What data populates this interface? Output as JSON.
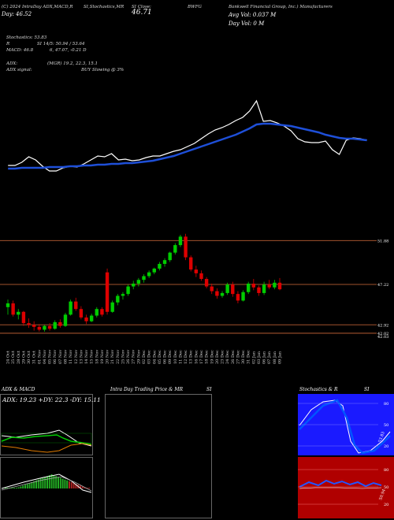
{
  "header": {
    "left": "(C) 2024 IntraDay ADX,MACD,R",
    "si_stoch": "SI,Stochastics,MR",
    "si_closeprefix": "SI Close:",
    "close_value": "46.71",
    "ticker": "BWFG",
    "company": "Bankwell Financial Group, Inc.) Manufacturers",
    "day_label": "Day:",
    "day_value": "46.52",
    "avg_vol": "Avg Vol: 0.037 M",
    "day_vol": "Day Vol: 0 M",
    "line_stoch": "Stochastics: 53.83",
    "line_r": "R",
    "line_si": "SI 14/5: 50.94 / 53.64",
    "line_macd": "MACD: 46.8",
    "line_macd2": "6, 47.07, -0.21 D",
    "line_adx": "ADX:",
    "line_adx2": "(MGR) 19.2, 22.3, 15.1",
    "line_adxsignal": "ADX signal:",
    "line_buy": "BUY Slowing @ 3%"
  },
  "price_levels": [
    {
      "label": "51.88",
      "value": 51.88
    },
    {
      "label": "47.22",
      "value": 47.22
    },
    {
      "label": "42.92",
      "value": 42.92
    },
    {
      "label": "42.02",
      "value": 42.02
    },
    {
      "label": "42.03",
      "value": 42.03
    }
  ],
  "dates": [
    "24 Oct",
    "25 Oct",
    "28 Oct",
    "29 Oct",
    "30 Oct",
    "31 Oct",
    "01 Nov",
    "04 Nov",
    "05 Nov",
    "06 Nov",
    "07 Nov",
    "08 Nov",
    "11 Nov",
    "12 Nov",
    "13 Nov",
    "14 Nov",
    "15 Nov",
    "18 Nov",
    "19 Nov",
    "20 Nov",
    "21 Nov",
    "22 Nov",
    "25 Nov",
    "26 Nov",
    "27 Nov",
    "29 Nov",
    "02 Dec",
    "03 Dec",
    "04 Dec",
    "05 Dec",
    "06 Dec",
    "09 Dec",
    "10 Dec",
    "11 Dec",
    "12 Dec",
    "13 Dec",
    "16 Dec",
    "17 Dec",
    "18 Dec",
    "19 Dec",
    "20 Dec",
    "23 Dec",
    "24 Dec",
    "26 Dec",
    "27 Dec",
    "30 Dec",
    "31 Dec",
    "02 Jan",
    "03 Jan",
    "06 Jan",
    "07 Jan",
    "08 Jan",
    "09 Jan"
  ],
  "candles": [
    [
      44.8,
      45.6,
      44.0,
      45.2,
      "g"
    ],
    [
      45.2,
      45.5,
      43.8,
      44.0,
      "r"
    ],
    [
      44.0,
      44.6,
      43.5,
      44.3,
      "g"
    ],
    [
      44.3,
      44.4,
      42.8,
      43.1,
      "r"
    ],
    [
      43.1,
      43.6,
      42.6,
      42.9,
      "r"
    ],
    [
      42.9,
      43.3,
      42.3,
      42.7,
      "r"
    ],
    [
      42.7,
      43.0,
      42.2,
      42.4,
      "r"
    ],
    [
      42.4,
      42.9,
      42.2,
      42.8,
      "g"
    ],
    [
      42.8,
      43.1,
      42.3,
      42.5,
      "r"
    ],
    [
      42.5,
      43.4,
      42.4,
      43.2,
      "g"
    ],
    [
      43.2,
      43.5,
      42.6,
      42.8,
      "r"
    ],
    [
      42.8,
      44.2,
      42.7,
      44.0,
      "g"
    ],
    [
      44.0,
      45.6,
      43.9,
      45.4,
      "g"
    ],
    [
      45.4,
      45.8,
      44.4,
      44.6,
      "r"
    ],
    [
      44.6,
      44.9,
      43.5,
      43.7,
      "r"
    ],
    [
      43.7,
      44.0,
      43.0,
      43.3,
      "r"
    ],
    [
      43.3,
      44.1,
      43.2,
      43.9,
      "g"
    ],
    [
      43.9,
      44.8,
      43.7,
      44.6,
      "g"
    ],
    [
      44.6,
      44.8,
      43.8,
      44.0,
      "r"
    ],
    [
      48.5,
      48.9,
      44.0,
      44.3,
      "r"
    ],
    [
      44.3,
      45.5,
      44.2,
      45.3,
      "g"
    ],
    [
      45.3,
      46.2,
      45.0,
      46.0,
      "g"
    ],
    [
      46.0,
      46.4,
      45.6,
      46.2,
      "g"
    ],
    [
      46.2,
      47.2,
      46.0,
      47.0,
      "g"
    ],
    [
      47.0,
      47.6,
      46.7,
      47.3,
      "g"
    ],
    [
      47.3,
      47.9,
      47.0,
      47.7,
      "g"
    ],
    [
      47.7,
      48.3,
      47.4,
      48.1,
      "g"
    ],
    [
      48.1,
      48.7,
      47.9,
      48.5,
      "g"
    ],
    [
      48.5,
      49.0,
      48.3,
      48.9,
      "g"
    ],
    [
      48.9,
      49.6,
      48.7,
      49.4,
      "g"
    ],
    [
      49.4,
      50.0,
      49.1,
      49.8,
      "g"
    ],
    [
      49.8,
      50.7,
      49.6,
      50.6,
      "g"
    ],
    [
      50.6,
      51.6,
      50.4,
      51.4,
      "g"
    ],
    [
      51.4,
      52.5,
      51.2,
      52.3,
      "g"
    ],
    [
      52.3,
      52.6,
      49.8,
      50.1,
      "r"
    ],
    [
      50.1,
      50.3,
      48.6,
      48.8,
      "r"
    ],
    [
      48.8,
      49.2,
      48.0,
      48.4,
      "r"
    ],
    [
      48.4,
      48.7,
      47.6,
      47.8,
      "r"
    ],
    [
      47.8,
      48.0,
      46.8,
      47.0,
      "r"
    ],
    [
      47.0,
      47.3,
      46.2,
      46.5,
      "r"
    ],
    [
      46.5,
      46.8,
      45.7,
      46.0,
      "r"
    ],
    [
      46.0,
      46.5,
      45.8,
      46.3,
      "g"
    ],
    [
      46.3,
      47.4,
      46.1,
      47.2,
      "g"
    ],
    [
      47.2,
      47.5,
      45.9,
      46.2,
      "r"
    ],
    [
      46.2,
      46.5,
      45.2,
      45.5,
      "r"
    ],
    [
      45.5,
      46.6,
      45.4,
      46.4,
      "g"
    ],
    [
      46.4,
      47.5,
      46.2,
      47.3,
      "g"
    ],
    [
      47.3,
      47.8,
      46.6,
      46.9,
      "r"
    ],
    [
      46.9,
      47.1,
      46.0,
      46.3,
      "r"
    ],
    [
      46.3,
      47.5,
      46.1,
      47.2,
      "g"
    ],
    [
      47.2,
      47.7,
      46.7,
      46.9,
      "r"
    ],
    [
      46.9,
      47.7,
      46.7,
      47.4,
      "g"
    ],
    [
      47.4,
      47.9,
      46.6,
      46.7,
      "r"
    ]
  ],
  "panels": {
    "adx_title": "ADX & MACD",
    "adx_values": "ADX: 19.23  +DY: 22.3  -DY: 15.11",
    "intraday_title": "Intra Day Trading Price  & MR",
    "intraday_si": "SI",
    "stoch_title": "Stochastics & R",
    "stoch_si": "SI",
    "stoch_levels": [
      "80",
      "50",
      "20"
    ],
    "stoch_value": "53.83",
    "si_levels": [
      "80",
      "50",
      "20"
    ],
    "si_value": "50.94"
  },
  "colors": {
    "up": "#00cc00",
    "down": "#dd0000",
    "level": "#a0522d",
    "ema": "#1e4fd8",
    "price": "#ffffff",
    "stoch_bg": "#1a1aff",
    "si_bg": "#b00000"
  }
}
